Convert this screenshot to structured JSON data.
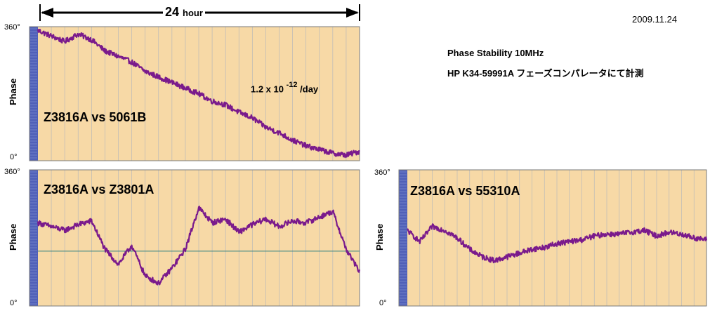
{
  "date": "2009.11.24",
  "info": {
    "line1": "Phase Stability  10MHz",
    "line2": "HP K34-59991A フェーズコンパレータにて計測"
  },
  "timespan": {
    "value": "24",
    "unit": "hour"
  },
  "colors": {
    "background": "#f7d9a6",
    "trace": "#7a1a8c",
    "grid": "#b9b9b9",
    "reference": "#2f7f7f",
    "bar": "#5060b8"
  },
  "chart_data": [
    {
      "type": "line",
      "title": "Z3816A vs 5061B",
      "ylabel": "Phase",
      "yticks": [
        "360°",
        "0°"
      ],
      "ylim": [
        0,
        360
      ],
      "xlim": [
        0,
        24
      ],
      "annotation": {
        "text": "1.2 x 10",
        "exponent": "-12",
        "suffix": " /day"
      },
      "series": [
        {
          "x": [
            0,
            1,
            2,
            3,
            4,
            5,
            6,
            7,
            8,
            9,
            10,
            11,
            12,
            13,
            14,
            15,
            16,
            17,
            18,
            19,
            20,
            21,
            22,
            23,
            24
          ],
          "y": [
            350,
            335,
            320,
            340,
            325,
            295,
            280,
            265,
            240,
            225,
            210,
            195,
            180,
            160,
            150,
            130,
            115,
            90,
            75,
            55,
            40,
            30,
            20,
            15,
            25
          ]
        }
      ]
    },
    {
      "type": "line",
      "title": "Z3816A vs Z3801A",
      "ylabel": "Phase",
      "yticks": [
        "360°",
        "0°"
      ],
      "ylim": [
        0,
        360
      ],
      "xlim": [
        0,
        24
      ],
      "reference_y": 145,
      "series": [
        {
          "x": [
            0,
            1,
            2,
            3,
            4,
            5,
            6,
            7,
            8,
            9,
            10,
            11,
            12,
            13,
            14,
            15,
            16,
            17,
            18,
            19,
            20,
            21,
            22,
            23,
            24
          ],
          "y": [
            220,
            210,
            200,
            215,
            225,
            150,
            110,
            160,
            80,
            60,
            100,
            150,
            260,
            220,
            230,
            195,
            215,
            230,
            210,
            225,
            220,
            235,
            250,
            150,
            90
          ]
        }
      ]
    },
    {
      "type": "line",
      "title": "Z3816A vs 55310A",
      "ylabel": "Phase",
      "yticks": [
        "360°",
        "0°"
      ],
      "ylim": [
        0,
        360
      ],
      "xlim": [
        0,
        24
      ],
      "series": [
        {
          "x": [
            0,
            1,
            2,
            3,
            4,
            5,
            6,
            7,
            8,
            9,
            10,
            11,
            12,
            13,
            14,
            15,
            16,
            17,
            18,
            19,
            20,
            21,
            22,
            23,
            24
          ],
          "y": [
            200,
            170,
            210,
            200,
            180,
            150,
            130,
            120,
            130,
            140,
            150,
            155,
            165,
            170,
            175,
            185,
            190,
            190,
            195,
            200,
            185,
            195,
            190,
            180,
            175
          ]
        }
      ]
    }
  ]
}
